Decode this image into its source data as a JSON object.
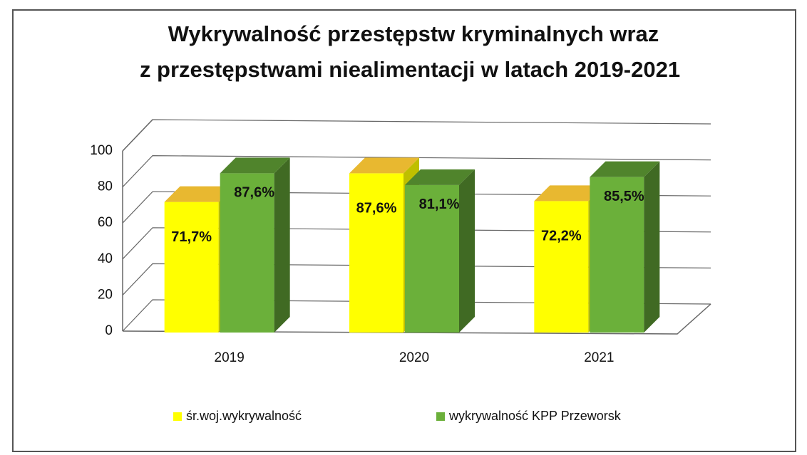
{
  "chart_data": {
    "type": "bar",
    "title": [
      "Wykrywalność przestępstw kryminalnych wraz",
      "z przestępstwami niealimentacji w latach 2019-2021"
    ],
    "categories": [
      "2019",
      "2020",
      "2021"
    ],
    "series": [
      {
        "name": "śr.woj.wykrywalność",
        "color": "#ffff00",
        "values": [
          71.7,
          87.6,
          72.2
        ],
        "value_labels": [
          "71,7%",
          "87,6%",
          "72,2%"
        ]
      },
      {
        "name": "wykrywalność KPP Przeworsk",
        "color": "#6bb03a",
        "values": [
          87.6,
          81.1,
          85.5
        ],
        "value_labels": [
          "87,6%",
          "81,1%",
          "85,5%"
        ]
      }
    ],
    "ylim": [
      0,
      100
    ],
    "yticks": [
      0,
      20,
      40,
      60,
      80,
      100
    ],
    "grid": true,
    "legend": "bottom"
  }
}
